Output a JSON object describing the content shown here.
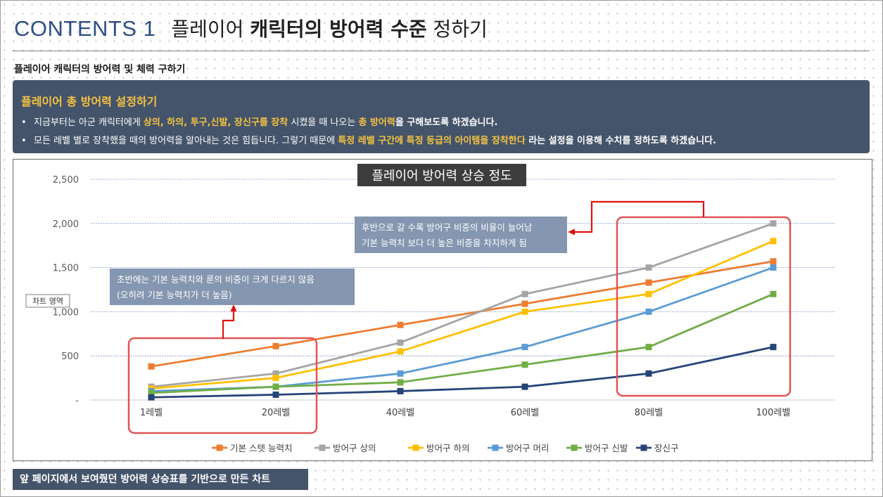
{
  "header": {
    "prefix": "CONTENTS 1",
    "title_part1": "플레이어 ",
    "title_part2_bold": "캐릭터의 방어력 수준",
    "title_part3": " 정하기"
  },
  "subtitle": "플레이어 캐릭터의 방어력 및 체력 구하기",
  "box": {
    "title": "플레이어 총 방어력 설정하기",
    "bullet1": {
      "a": "지금부터는 아군 캐릭터에게 ",
      "b": "상의, 하의, 투구,신발, 장신구를 장착",
      "c": " 시켰을 때 나오는 ",
      "d": "총 방어력",
      "e": "을 구해보도록 하겠습니다."
    },
    "bullet2": {
      "a": "모든 레벨 별로 장착했을 때의 방어력을 알아내는 것은 힘듭니다. 그렇기 때문에 ",
      "b": "특정 레벨 구간에 특정 등급의 아이템을 장착한다",
      "c": " 라는 설정을 이용해 수치를 정하도록 하겠습니다."
    }
  },
  "colors": {
    "accent": "#2e4f86",
    "box_bg": "#44546a",
    "highlight": "#f5c242",
    "note_bg": "#8496b0",
    "highlight_frame": "#e05555",
    "arrow": "#e01010"
  },
  "chart_data": {
    "type": "line",
    "title": "플레이어 방어력 상승 정도",
    "categories": [
      "1레벨",
      "20레벨",
      "40레벨",
      "60레벨",
      "80레벨",
      "100레벨"
    ],
    "yticks": [
      "-",
      "500",
      "1,000",
      "1,500",
      "2,000",
      "2,500"
    ],
    "ylim": [
      0,
      2500
    ],
    "grid": true,
    "legend_position": "bottom",
    "series": [
      {
        "name": "기본 스텟 능력치",
        "color": "#ed7d31",
        "values": [
          380,
          610,
          850,
          1090,
          1330,
          1570
        ]
      },
      {
        "name": "방어구 상의",
        "color": "#a5a5a5",
        "values": [
          150,
          300,
          650,
          1200,
          1500,
          2000
        ]
      },
      {
        "name": "방어구 하의",
        "color": "#ffc000",
        "values": [
          130,
          250,
          550,
          1000,
          1200,
          1800
        ]
      },
      {
        "name": "방어구 머리",
        "color": "#5b9bd5",
        "values": [
          100,
          150,
          300,
          600,
          1000,
          1500
        ]
      },
      {
        "name": "방어구 신발",
        "color": "#70ad47",
        "values": [
          80,
          150,
          200,
          400,
          600,
          1200
        ]
      },
      {
        "name": "장신구",
        "color": "#264478",
        "values": [
          30,
          60,
          100,
          150,
          300,
          600
        ]
      }
    ],
    "annotations": [
      "초반에는 기본 능력치와 룬의 비중이 크게 다르지 않음\n(오히려 기본 능력치가 더 높음)",
      "후반으로 갈 수록 방어구 비중의 비율이 늘어남\n기본 능력치 보다 더 높은 비중을 차지하게 됨"
    ],
    "area_label": "차트 영역"
  },
  "footer": "앞 페이지에서 보여줬던 방어력 상승표를 기반으로 만든 차트"
}
